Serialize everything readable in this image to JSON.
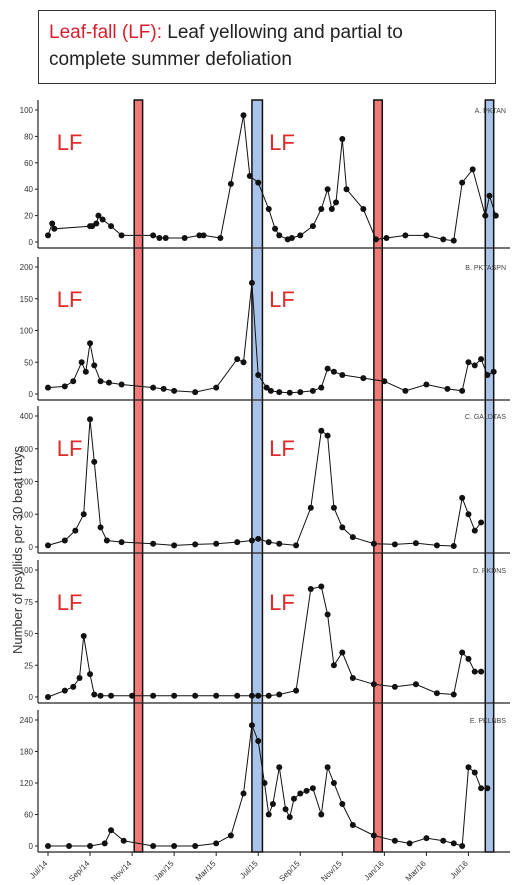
{
  "header": {
    "highlight": "Leaf-fall (LF):",
    "rest": " Leaf yellowing and partial to complete summer defoliation"
  },
  "ylabel": "Number of psyllids per 30 beat trays",
  "lf_label": "LF",
  "colors": {
    "leaf_fall": "#f07a78",
    "flush": "#a9c4e8",
    "lf_text": "#e02a2a"
  },
  "chart_data": {
    "type": "line",
    "xlabel": "",
    "x_tick_labels": [
      "Jul/14",
      "Sep/14",
      "Nov/14",
      "Jan/15",
      "Mar/15",
      "Jul/15",
      "Sep/15",
      "Nov/15",
      "Jan/16",
      "Mar/16",
      "Jul/16"
    ],
    "leaf_fall_bands": [
      [
        0.41,
        0.45
      ],
      [
        1.55,
        1.59
      ]
    ],
    "flush_bands": [
      [
        0.97,
        1.02
      ],
      [
        2.08,
        2.12
      ]
    ],
    "panels": [
      {
        "label": "A. PKTAN",
        "ylim": [
          0,
          100
        ],
        "yticks": [
          0,
          20,
          40,
          60,
          80,
          100
        ],
        "lf_labels": true,
        "x": [
          0.0,
          0.02,
          0.03,
          0.2,
          0.21,
          0.23,
          0.24,
          0.26,
          0.3,
          0.35,
          0.5,
          0.53,
          0.56,
          0.65,
          0.72,
          0.74,
          0.82,
          0.87,
          0.93,
          0.96,
          1.0,
          1.05,
          1.08,
          1.1,
          1.14,
          1.16,
          1.2,
          1.26,
          1.3,
          1.33,
          1.35,
          1.37,
          1.4,
          1.42,
          1.5,
          1.56,
          1.61,
          1.7,
          1.8,
          1.88,
          1.93,
          1.97,
          2.02,
          2.08,
          2.1,
          2.13
        ],
        "y": [
          5,
          14,
          10,
          12,
          12,
          14,
          20,
          17,
          12,
          5,
          5,
          3,
          3,
          3,
          5,
          5,
          3,
          44,
          96,
          50,
          45,
          25,
          10,
          5,
          2,
          3,
          5,
          12,
          25,
          40,
          25,
          30,
          78,
          40,
          25,
          2,
          3,
          5,
          5,
          2,
          1,
          45,
          55,
          20,
          35,
          20
        ]
      },
      {
        "label": "B. PKTASPN",
        "ylim": [
          0,
          200
        ],
        "yticks": [
          0,
          50,
          100,
          150,
          200
        ],
        "lf_labels": true,
        "x": [
          0.0,
          0.08,
          0.12,
          0.16,
          0.18,
          0.2,
          0.22,
          0.25,
          0.29,
          0.35,
          0.5,
          0.55,
          0.6,
          0.7,
          0.8,
          0.9,
          0.93,
          0.97,
          1.0,
          1.04,
          1.06,
          1.1,
          1.15,
          1.2,
          1.26,
          1.3,
          1.33,
          1.36,
          1.4,
          1.5,
          1.6,
          1.7,
          1.8,
          1.9,
          1.97,
          2.0,
          2.03,
          2.06,
          2.09,
          2.12
        ],
        "y": [
          10,
          12,
          20,
          50,
          35,
          80,
          45,
          20,
          18,
          15,
          10,
          8,
          5,
          3,
          10,
          55,
          50,
          175,
          30,
          10,
          5,
          3,
          2,
          3,
          5,
          10,
          40,
          35,
          30,
          25,
          20,
          5,
          15,
          8,
          5,
          50,
          45,
          55,
          30,
          35
        ]
      },
      {
        "label": "C. GALDTAS",
        "ylim": [
          0,
          400
        ],
        "yticks": [
          0,
          100,
          200,
          300,
          400
        ],
        "lf_labels": true,
        "x": [
          0.0,
          0.08,
          0.13,
          0.17,
          0.2,
          0.22,
          0.25,
          0.28,
          0.35,
          0.5,
          0.6,
          0.7,
          0.8,
          0.9,
          0.97,
          1.0,
          1.05,
          1.1,
          1.18,
          1.25,
          1.3,
          1.33,
          1.36,
          1.4,
          1.45,
          1.55,
          1.65,
          1.75,
          1.85,
          1.93,
          1.97,
          2.0,
          2.03,
          2.06
        ],
        "y": [
          5,
          20,
          50,
          100,
          390,
          260,
          60,
          20,
          15,
          10,
          5,
          8,
          10,
          15,
          20,
          25,
          15,
          10,
          5,
          120,
          355,
          340,
          120,
          60,
          30,
          10,
          8,
          12,
          5,
          3,
          150,
          100,
          50,
          75
        ]
      },
      {
        "label": "D. PKDNS",
        "ylim": [
          0,
          100
        ],
        "yticks": [
          0,
          25,
          50,
          75,
          100
        ],
        "lf_labels": true,
        "x": [
          0.0,
          0.08,
          0.12,
          0.15,
          0.17,
          0.2,
          0.22,
          0.25,
          0.3,
          0.4,
          0.5,
          0.6,
          0.7,
          0.8,
          0.9,
          0.97,
          1.0,
          1.05,
          1.1,
          1.18,
          1.25,
          1.3,
          1.33,
          1.36,
          1.4,
          1.45,
          1.55,
          1.65,
          1.75,
          1.85,
          1.93,
          1.97,
          2.0,
          2.03,
          2.06
        ],
        "y": [
          0,
          5,
          8,
          15,
          48,
          18,
          2,
          1,
          1,
          1,
          1,
          1,
          1,
          1,
          1,
          1,
          1,
          1,
          2,
          5,
          85,
          87,
          65,
          25,
          35,
          15,
          10,
          8,
          10,
          3,
          2,
          35,
          30,
          20,
          20
        ]
      },
      {
        "label": "E. PKLNBS",
        "ylim": [
          0,
          240
        ],
        "yticks": [
          0,
          60,
          120,
          180,
          240
        ],
        "lf_labels": false,
        "x": [
          0.0,
          0.1,
          0.2,
          0.27,
          0.3,
          0.36,
          0.5,
          0.6,
          0.7,
          0.8,
          0.87,
          0.93,
          0.97,
          1.0,
          1.03,
          1.05,
          1.07,
          1.1,
          1.13,
          1.15,
          1.17,
          1.2,
          1.23,
          1.26,
          1.3,
          1.33,
          1.36,
          1.4,
          1.45,
          1.55,
          1.65,
          1.72,
          1.8,
          1.88,
          1.93,
          1.97,
          2.0,
          2.03,
          2.06,
          2.09
        ],
        "y": [
          0,
          0,
          0,
          5,
          30,
          10,
          0,
          0,
          0,
          5,
          20,
          100,
          230,
          200,
          120,
          60,
          80,
          150,
          70,
          55,
          90,
          100,
          105,
          110,
          60,
          150,
          120,
          80,
          40,
          20,
          10,
          5,
          15,
          10,
          5,
          0,
          150,
          140,
          110,
          110
        ]
      }
    ]
  }
}
